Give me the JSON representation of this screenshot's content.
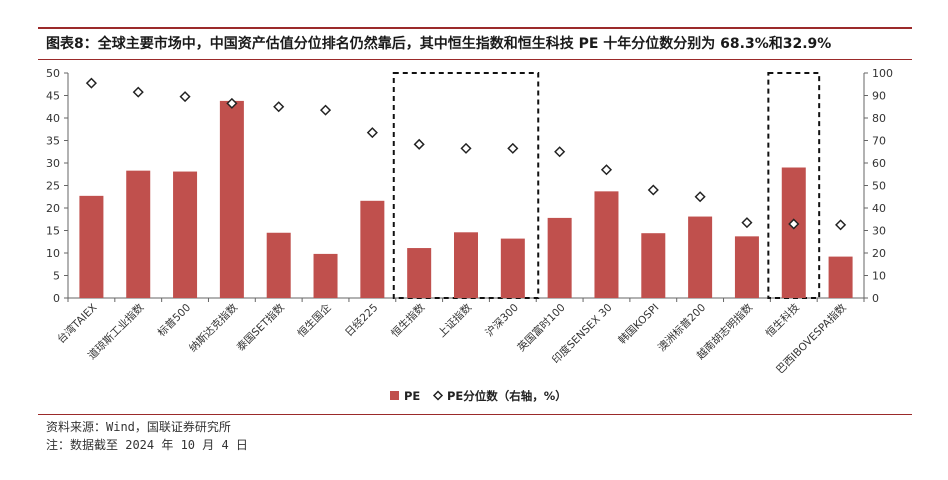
{
  "header": {
    "title": "图表8：全球主要市场中，中国资产估值分位排名仍然靠后，其中恒生指数和恒生科技 PE 十年分位数分别为 68.3%和32.9%"
  },
  "footer": {
    "source": "资料来源：Wind，国联证券研究所",
    "note": "注：数据截至 2024 年 10 月 4 日"
  },
  "colors": {
    "bar": "#c0504d",
    "marker_stroke": "#222222",
    "accent": "#9b2a2a"
  },
  "chart_data": {
    "type": "bar",
    "categories": [
      "台湾TAIEX",
      "道琼斯工业指数",
      "标普500",
      "纳斯达克指数",
      "泰国SET指数",
      "恒生国企",
      "日经225",
      "恒生指数",
      "上证指数",
      "沪深300",
      "英国富时100",
      "印度SENSEX 30",
      "韩国KOSPI",
      "澳洲标普200",
      "越南胡志明指数",
      "恒生科技",
      "巴西IBOVESPA指数"
    ],
    "series": [
      {
        "name": "PE",
        "type": "bar",
        "axis": "left",
        "values": [
          22.7,
          28.3,
          28.1,
          43.8,
          14.5,
          9.8,
          21.6,
          11.1,
          14.6,
          13.2,
          17.8,
          23.7,
          14.4,
          18.1,
          13.7,
          29.0,
          9.2
        ]
      },
      {
        "name": "PE分位数（右轴，%）",
        "type": "scatter",
        "marker": "diamond",
        "axis": "right",
        "values": [
          95.5,
          91.5,
          89.5,
          86.5,
          85.0,
          83.5,
          73.5,
          68.3,
          66.5,
          66.5,
          65.0,
          57.0,
          48.0,
          45.0,
          33.5,
          32.9,
          32.5
        ]
      }
    ],
    "left_axis": {
      "ylim": [
        0,
        50
      ],
      "ticks": [
        "0",
        "5",
        "10",
        "15",
        "20",
        "25",
        "30",
        "35",
        "40",
        "45",
        "50"
      ]
    },
    "right_axis": {
      "ylim": [
        0,
        100
      ],
      "ticks": [
        "0",
        "10",
        "20",
        "30",
        "40",
        "50",
        "60",
        "70",
        "80",
        "90",
        "100"
      ]
    },
    "highlight_boxes": [
      {
        "from": "恒生指数",
        "to": "沪深300",
        "style": "dashed"
      },
      {
        "from": "恒生科技",
        "to": "恒生科技",
        "style": "dashed"
      }
    ],
    "grid": false,
    "legend": {
      "position": "bottom",
      "entries": [
        "PE",
        "PE分位数（右轴，%）"
      ]
    }
  }
}
